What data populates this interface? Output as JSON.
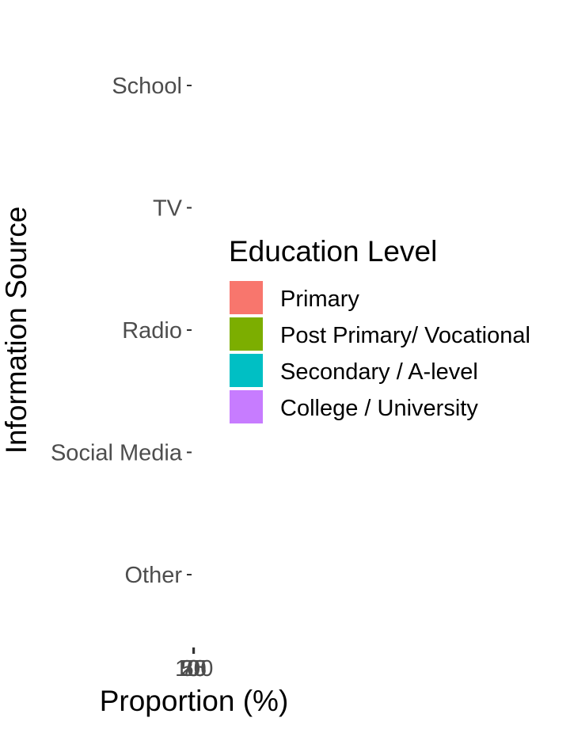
{
  "chart_data": {
    "type": "bar",
    "orientation": "horizontal",
    "stacked": true,
    "title": "",
    "xlabel": "Proportion (%)",
    "ylabel": "Information Source",
    "categories": [
      "School",
      "TV",
      "Radio",
      "Social Media",
      "Other"
    ],
    "x_ticks": [
      "0",
      "25",
      "50",
      "75",
      "100"
    ],
    "legend": {
      "title": "Education Level",
      "placement": "right",
      "entries": [
        {
          "name": "Primary",
          "color": "#F8766D"
        },
        {
          "name": "Post Primary/ Vocational",
          "color": "#7CAE00"
        },
        {
          "name": "Secondary / A-level",
          "color": "#00BFC4"
        },
        {
          "name": "College / University",
          "color": "#C77CFF"
        }
      ]
    },
    "series": [
      {
        "name": "Primary",
        "values": [
          null,
          null,
          null,
          null,
          null
        ]
      },
      {
        "name": "Post Primary/ Vocational",
        "values": [
          null,
          null,
          null,
          null,
          null
        ]
      },
      {
        "name": "Secondary / A-level",
        "values": [
          null,
          null,
          null,
          null,
          null
        ]
      },
      {
        "name": "College / University",
        "values": [
          null,
          null,
          null,
          null,
          null
        ]
      }
    ],
    "grid": false
  }
}
